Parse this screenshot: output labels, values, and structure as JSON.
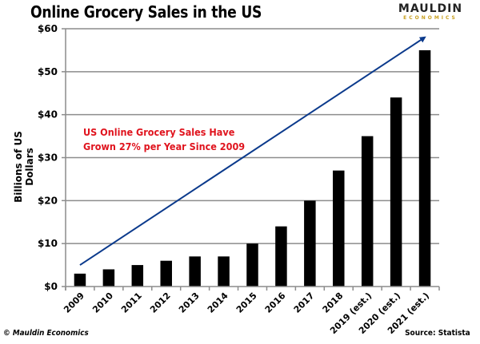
{
  "header": {
    "title": "Online Grocery Sales in the US",
    "logo_top": "MAULDIN",
    "logo_bottom": "ECONOMICS"
  },
  "footer": {
    "copyright": "© Mauldin Economics",
    "source": "Source: Statista"
  },
  "colors": {
    "bar": "#000000",
    "gridline": "#8c8c8c",
    "trend_arrow": "#0b3a8c",
    "annotation": "#e0141e"
  },
  "chart_data": {
    "type": "bar",
    "title": "Online Grocery Sales in the US",
    "xlabel": "",
    "ylabel": "Billions of US Dollars",
    "categories": [
      "2009",
      "2010",
      "2011",
      "2012",
      "2013",
      "2014",
      "2015",
      "2016",
      "2017",
      "2018",
      "2019 (est.)",
      "2020 (est.)",
      "2021 (est.)"
    ],
    "values": [
      3,
      4,
      5,
      6,
      7,
      7,
      10,
      14,
      20,
      27,
      35,
      44,
      55
    ],
    "ylim": [
      0,
      60
    ],
    "yticks": [
      0,
      10,
      20,
      30,
      40,
      50,
      60
    ],
    "ytick_labels": [
      "$0",
      "$10",
      "$20",
      "$30",
      "$40",
      "$50",
      "$60"
    ],
    "grid": true,
    "legend": "none",
    "annotation": {
      "line1": "US Online Grocery Sales Have",
      "line2": "Grown 27% per Year Since 2009"
    },
    "trend_arrow": {
      "from": {
        "category": "2009",
        "value": 5
      },
      "to": {
        "category": "2021 (est.)",
        "value": 58
      }
    }
  }
}
